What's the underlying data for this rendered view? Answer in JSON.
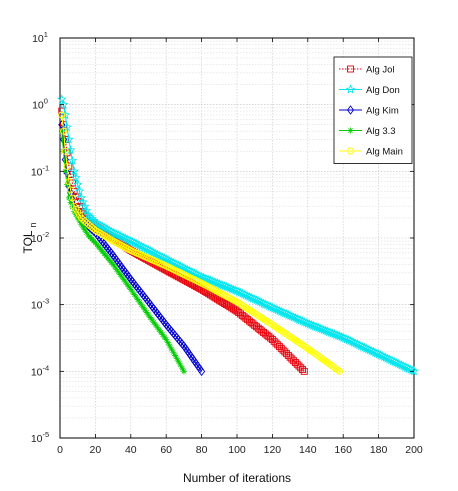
{
  "chart_data": {
    "type": "line",
    "y_scale": "log",
    "xlabel": "Number of iterations",
    "ylabel_main": "TOL",
    "ylabel_sub": "n",
    "xlim": [
      0,
      200
    ],
    "ylim": [
      1e-05,
      10
    ],
    "x_ticks": [
      "0",
      "20",
      "40",
      "60",
      "80",
      "100",
      "120",
      "140",
      "160",
      "180",
      "200"
    ],
    "y_ticks": [
      {
        "value": 1e-05,
        "base": "10",
        "exp": "-5"
      },
      {
        "value": 0.0001,
        "base": "10",
        "exp": "-4"
      },
      {
        "value": 0.001,
        "base": "10",
        "exp": "-3"
      },
      {
        "value": 0.01,
        "base": "10",
        "exp": "-2"
      },
      {
        "value": 0.1,
        "base": "10",
        "exp": "-1"
      },
      {
        "value": 1,
        "base": "10",
        "exp": "0"
      },
      {
        "value": 10,
        "base": "10",
        "exp": "1"
      }
    ],
    "grid": true,
    "legend_position": "top-right",
    "series": [
      {
        "name": "Alg Jol",
        "color": "#e8000b",
        "marker": "square",
        "line": "dotted",
        "x": [
          1,
          2,
          3,
          5,
          8,
          12,
          16,
          20,
          30,
          40,
          60,
          80,
          100,
          120,
          138
        ],
        "y": [
          0.8,
          0.5,
          0.3,
          0.12,
          0.05,
          0.025,
          0.018,
          0.015,
          0.01,
          0.0065,
          0.0033,
          0.0017,
          0.0008,
          0.0003,
          0.0001
        ]
      },
      {
        "name": "Alg Don",
        "color": "#00e5ee",
        "marker": "star",
        "line": "solid",
        "x": [
          1,
          2,
          3,
          5,
          8,
          12,
          16,
          20,
          30,
          40,
          60,
          80,
          100,
          120,
          140,
          160,
          180,
          200
        ],
        "y": [
          1.2,
          1.0,
          0.7,
          0.3,
          0.1,
          0.04,
          0.022,
          0.017,
          0.012,
          0.009,
          0.0048,
          0.0026,
          0.0016,
          0.0009,
          0.00052,
          0.00032,
          0.00018,
          0.0001
        ]
      },
      {
        "name": "Alg Kim",
        "color": "#0000cc",
        "marker": "diamond",
        "line": "solid",
        "x": [
          1,
          2,
          3,
          5,
          8,
          12,
          16,
          20,
          30,
          40,
          50,
          60,
          70,
          80
        ],
        "y": [
          0.5,
          0.3,
          0.15,
          0.06,
          0.03,
          0.02,
          0.015,
          0.012,
          0.0055,
          0.0024,
          0.0011,
          0.0005,
          0.00024,
          0.0001
        ]
      },
      {
        "name": "Alg 3.3",
        "color": "#00cc00",
        "marker": "asterisk",
        "line": "solid",
        "x": [
          1,
          2,
          3,
          5,
          8,
          12,
          16,
          20,
          30,
          40,
          50,
          60,
          70
        ],
        "y": [
          0.4,
          0.2,
          0.1,
          0.04,
          0.025,
          0.016,
          0.011,
          0.0085,
          0.004,
          0.0017,
          0.0007,
          0.0003,
          0.0001
        ]
      },
      {
        "name": "Alg Main",
        "color": "#ffff00",
        "marker": "circle",
        "line": "solid",
        "x": [
          1,
          2,
          3,
          5,
          8,
          12,
          16,
          20,
          30,
          40,
          60,
          80,
          100,
          120,
          140,
          158
        ],
        "y": [
          0.7,
          0.4,
          0.2,
          0.07,
          0.03,
          0.02,
          0.016,
          0.013,
          0.009,
          0.0065,
          0.0038,
          0.0021,
          0.0011,
          0.0005,
          0.00022,
          0.0001
        ]
      }
    ]
  }
}
